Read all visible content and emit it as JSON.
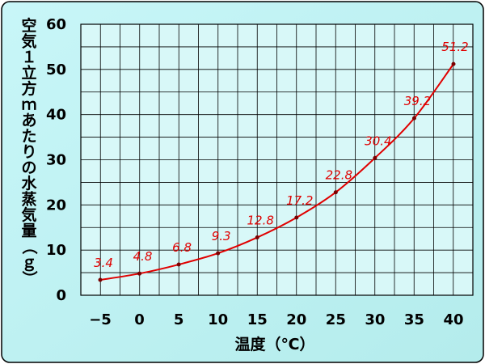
{
  "chart_data": {
    "type": "line",
    "xlabel": "温度（℃）",
    "ylabel": "空気１立方ｍあたりの水蒸気量（ｇ）",
    "x": [
      -5,
      0,
      5,
      10,
      15,
      20,
      25,
      30,
      35,
      40
    ],
    "x_tick_labels": [
      "−5",
      "0",
      "5",
      "10",
      "15",
      "20",
      "25",
      "30",
      "35",
      "40"
    ],
    "y_ticks": [
      0,
      10,
      20,
      30,
      40,
      50,
      60
    ],
    "ylim": [
      0,
      60
    ],
    "xlim": [
      -5,
      40
    ],
    "series": [
      {
        "values": [
          3.4,
          4.8,
          6.8,
          9.3,
          12.8,
          17.2,
          22.8,
          30.4,
          39.2,
          51.2
        ],
        "labels": [
          "3.4",
          "4.8",
          "6.8",
          "9.3",
          "12.8",
          "17.2",
          "22.8",
          "30.4",
          "39.2",
          "51.2"
        ],
        "color": "#e00000"
      }
    ],
    "grid": true,
    "colors": {
      "page_bg": "#c8f0f0",
      "plot_bg": "#d8f8f8",
      "grid": "#000000",
      "line": "#e00000",
      "label": "#e00000"
    }
  }
}
